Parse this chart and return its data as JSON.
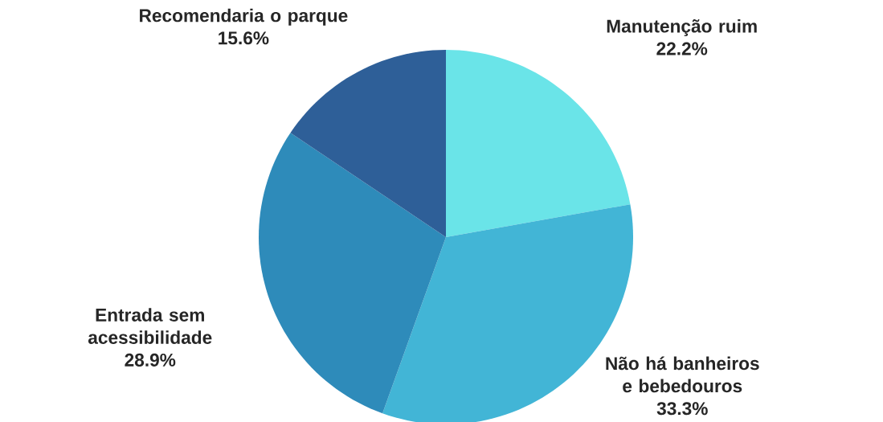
{
  "chart_data": {
    "type": "pie",
    "categories": [
      "Manutenção ruim",
      "Não há banheiros e bebedouros",
      "Entrada sem acessibilidade",
      "Recomendaria o parque"
    ],
    "values": [
      22.2,
      33.3,
      28.9,
      15.6
    ],
    "value_labels": [
      "22.2%",
      "33.3%",
      "28.9%",
      "15.6%"
    ],
    "colors": [
      "#6ae4e8",
      "#42b5d6",
      "#2e8bba",
      "#2e5f98"
    ]
  }
}
